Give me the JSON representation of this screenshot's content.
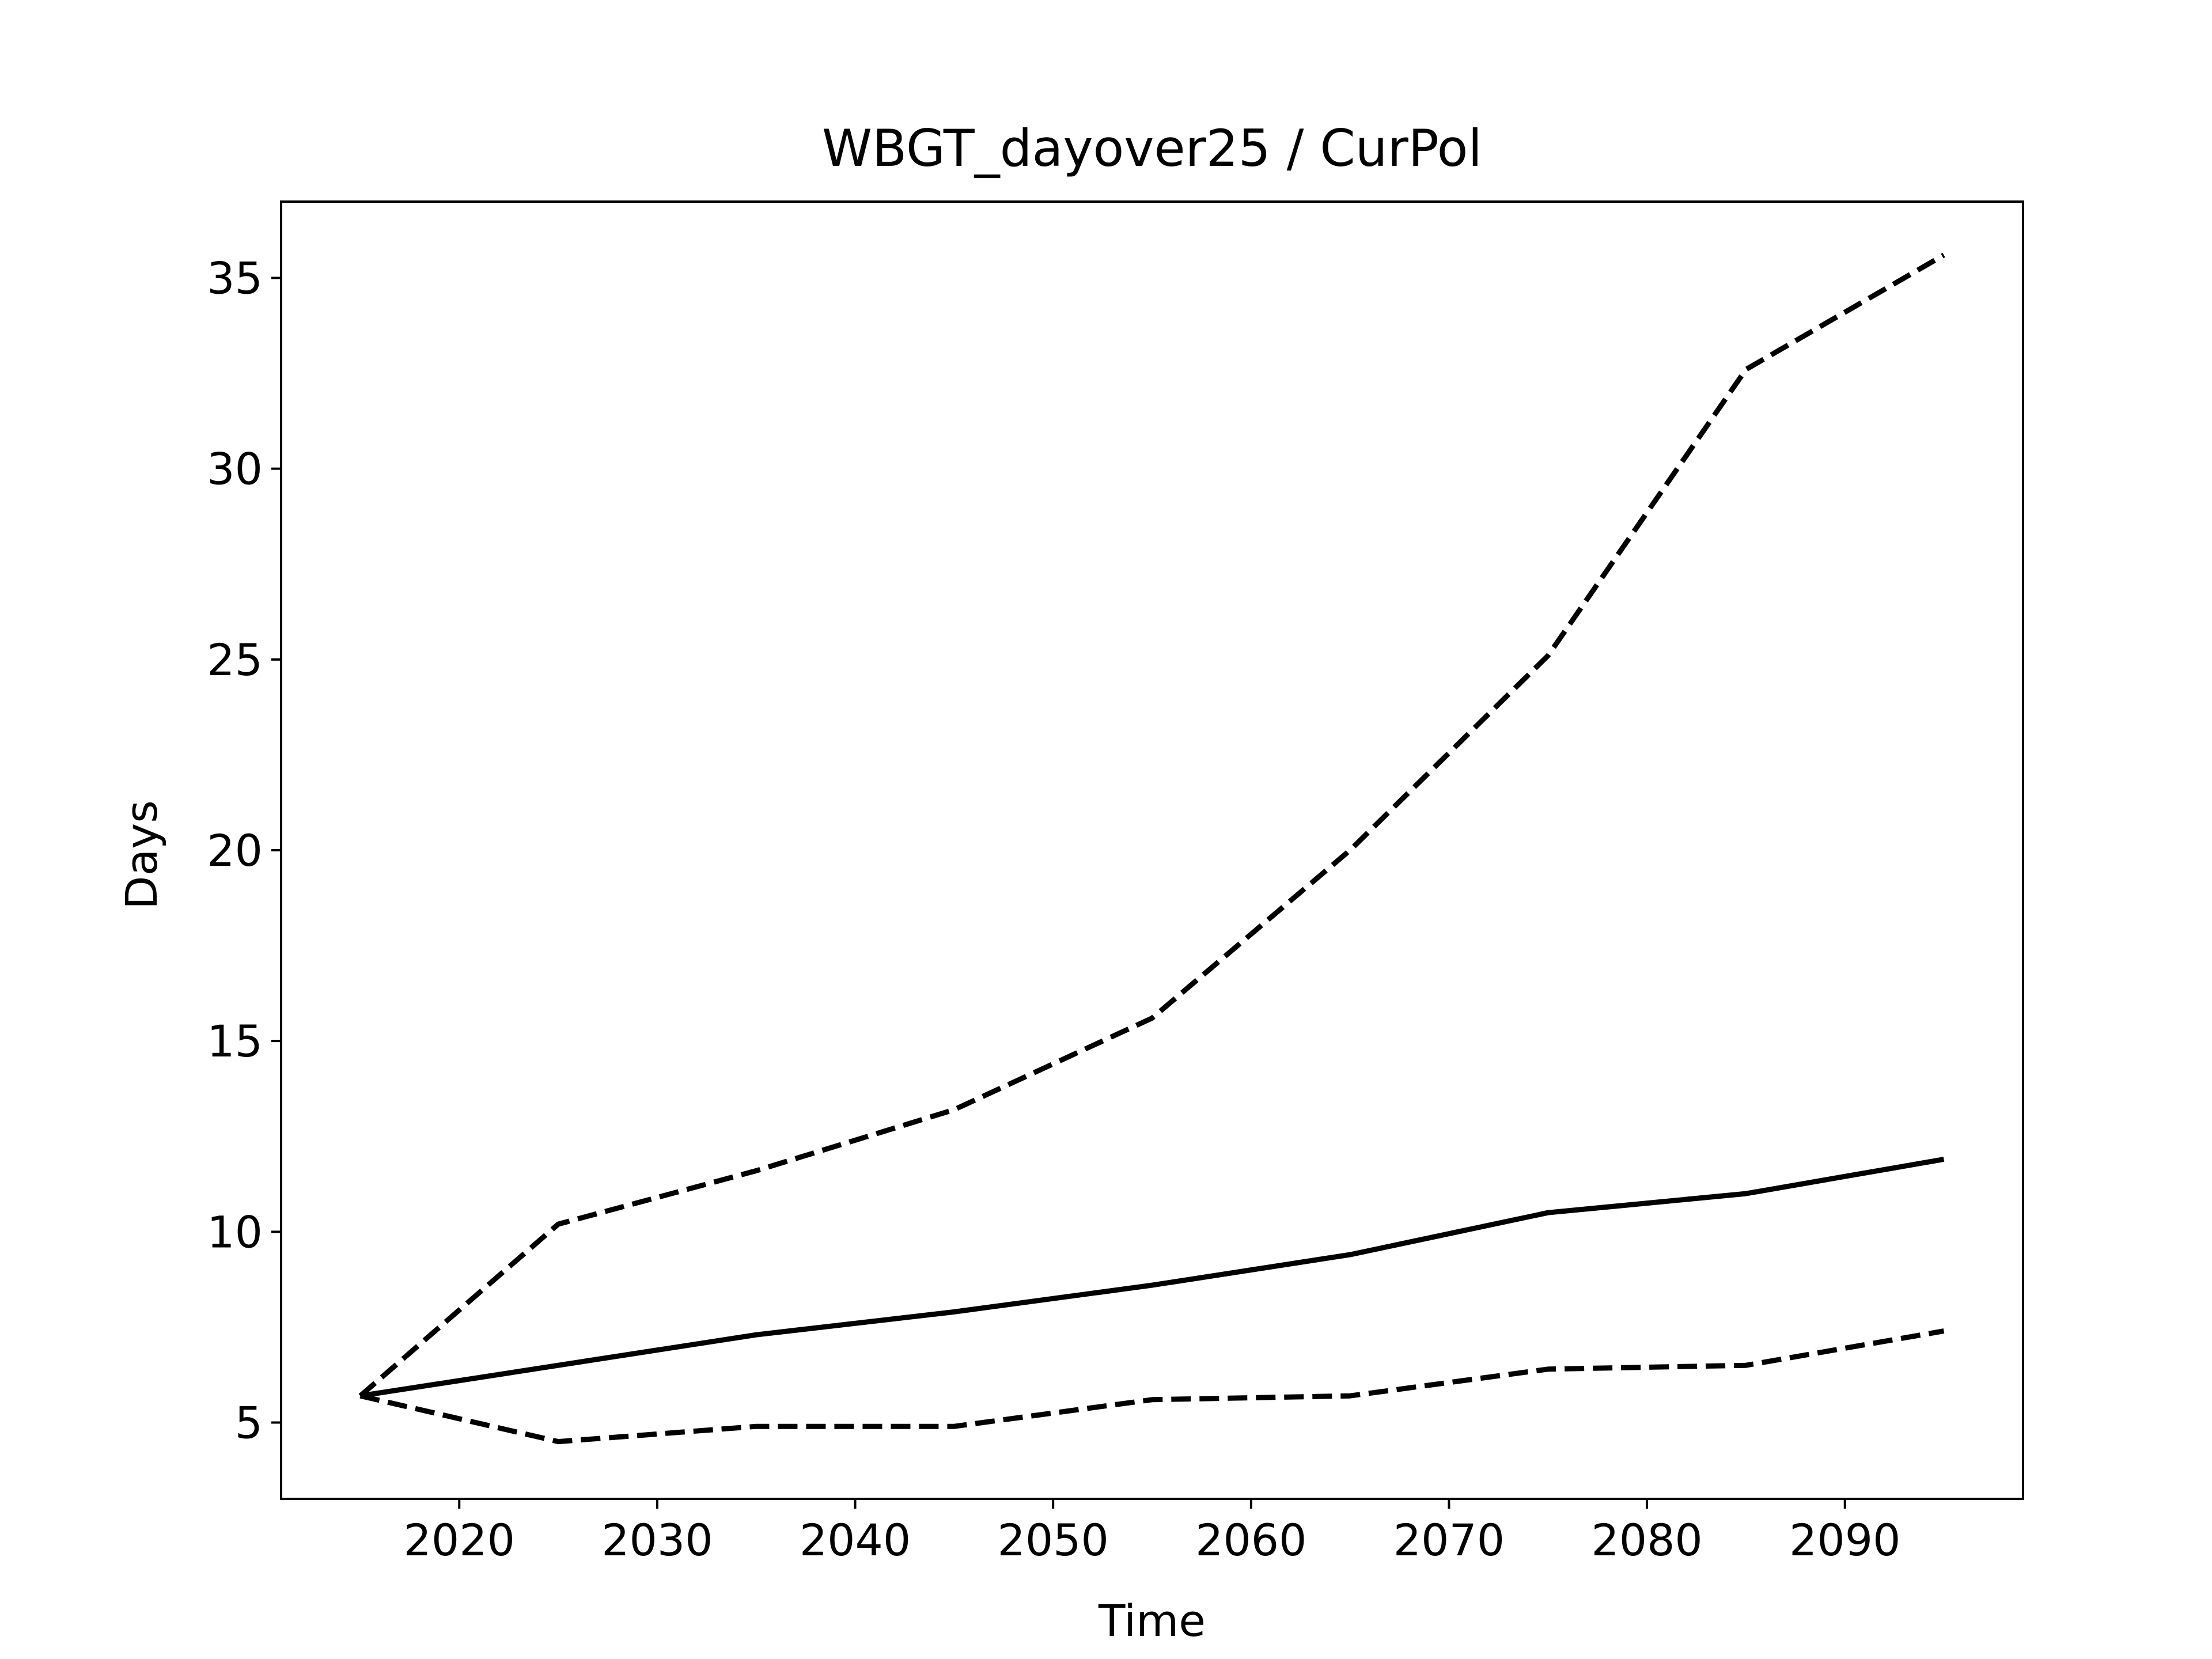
{
  "chart_data": {
    "type": "line",
    "title": "WBGT_dayover25 / CurPol",
    "xlabel": "Time",
    "ylabel": "Days",
    "xlim": [
      2011,
      2099
    ],
    "ylim": [
      3,
      37
    ],
    "x_ticks": [
      2020,
      2030,
      2040,
      2050,
      2060,
      2070,
      2080,
      2090
    ],
    "y_ticks": [
      5,
      10,
      15,
      20,
      25,
      30,
      35
    ],
    "grid": false,
    "legend": "none",
    "x": [
      2015,
      2025,
      2035,
      2045,
      2055,
      2065,
      2075,
      2085,
      2095
    ],
    "series": [
      {
        "style": "dashed",
        "color": "#000000",
        "values": [
          5.7,
          10.2,
          11.6,
          13.2,
          15.6,
          20.0,
          25.1,
          32.6,
          35.6
        ]
      },
      {
        "style": "solid",
        "color": "#000000",
        "values": [
          5.7,
          6.5,
          7.3,
          7.9,
          8.6,
          9.4,
          10.5,
          11.0,
          11.9
        ]
      },
      {
        "style": "dashed",
        "color": "#000000",
        "values": [
          5.7,
          4.5,
          4.9,
          4.9,
          5.6,
          5.7,
          6.4,
          6.5,
          7.4
        ]
      }
    ]
  }
}
